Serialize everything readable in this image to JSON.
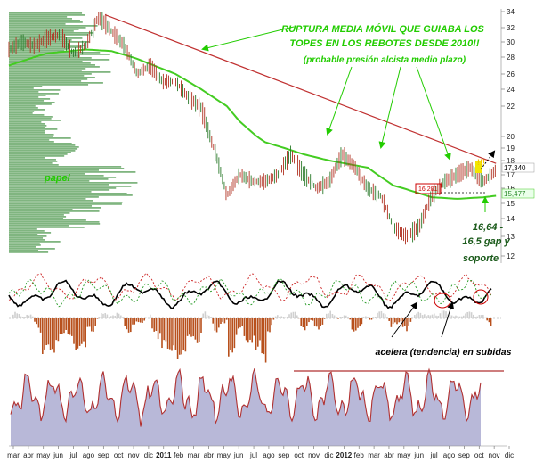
{
  "chart_data": {
    "type": "line",
    "main": {
      "y_ticks": [
        34,
        32,
        30,
        28,
        26,
        24,
        22,
        20,
        19,
        18,
        17,
        16,
        15,
        14,
        13,
        12
      ],
      "price_label": "17,340",
      "ma_label": "15,477",
      "gap_label": "16,201",
      "series": [
        {
          "name": "price",
          "x": [
            0,
            2,
            4,
            6,
            8,
            10,
            12,
            14,
            16,
            18,
            20,
            22,
            24,
            26,
            28,
            30,
            32,
            34,
            36,
            38,
            40,
            42,
            44,
            46,
            48,
            50,
            52,
            54,
            56,
            58,
            60,
            62,
            64,
            66,
            68,
            70,
            72,
            74,
            76
          ],
          "values": [
            29,
            30,
            29.5,
            30.5,
            31,
            28.5,
            29.5,
            33.5,
            31.5,
            29.5,
            26,
            27,
            25,
            25,
            23,
            22,
            19,
            15.5,
            17,
            16.5,
            16.5,
            17,
            18.5,
            17,
            16,
            16.5,
            18.5,
            17.5,
            16,
            15.5,
            13.5,
            13,
            13.5,
            15.5,
            16.5,
            17,
            17.5,
            16.5,
            17.3
          ]
        },
        {
          "name": "ma",
          "x": [
            0,
            6,
            12,
            16,
            20,
            26,
            30,
            36,
            40,
            46,
            50,
            56,
            60,
            66,
            70,
            74,
            76
          ],
          "values": [
            27,
            28.5,
            29,
            28.8,
            27.8,
            26,
            24,
            21,
            19.5,
            18.5,
            18,
            17.5,
            16.2,
            15.4,
            15.3,
            15.4,
            15.5
          ]
        }
      ],
      "trendline": {
        "from": [
          15,
          33.6
        ],
        "to": [
          76,
          17.8
        ]
      }
    },
    "x_labels": [
      "mar",
      "abr",
      "may",
      "jun",
      "jul",
      "ago",
      "sep",
      "oct",
      "nov",
      "dic",
      "2011",
      "feb",
      "mar",
      "abr",
      "may",
      "jun",
      "jul",
      "ago",
      "sep",
      "oct",
      "nov",
      "dic",
      "2012",
      "feb",
      "mar",
      "abr",
      "may",
      "jun",
      "jul",
      "ago",
      "sep",
      "oct",
      "nov",
      "dic"
    ],
    "bold_x_labels": [
      "2011",
      "2012"
    ]
  },
  "annotations": {
    "title_line1": "RUPTURA MEDIA MÓVIL QUE GUIABA LOS",
    "title_line2": "TOPES EN LOS REBOTES DESDE 2010!!",
    "subtitle": "(probable presión alcista medio plazo)",
    "papel": "papel",
    "gap_line1": "16,64 -",
    "gap_line2": "16,5 gap y",
    "gap_line3": "soporte",
    "exclaim": "!!!",
    "acelera": "acelera (tendencia) en subidas"
  },
  "colors": {
    "price": "#b03020",
    "ma": "#44cc22",
    "trendline": "#c03030",
    "volume_profile": "#6aa86a",
    "hist_neg": "#b8501c",
    "hist_pos": "#d0d0d0",
    "oscillator_fill": "#b8b8d8",
    "oscillator_line": "#b03030",
    "annotation": "#22cc00"
  }
}
